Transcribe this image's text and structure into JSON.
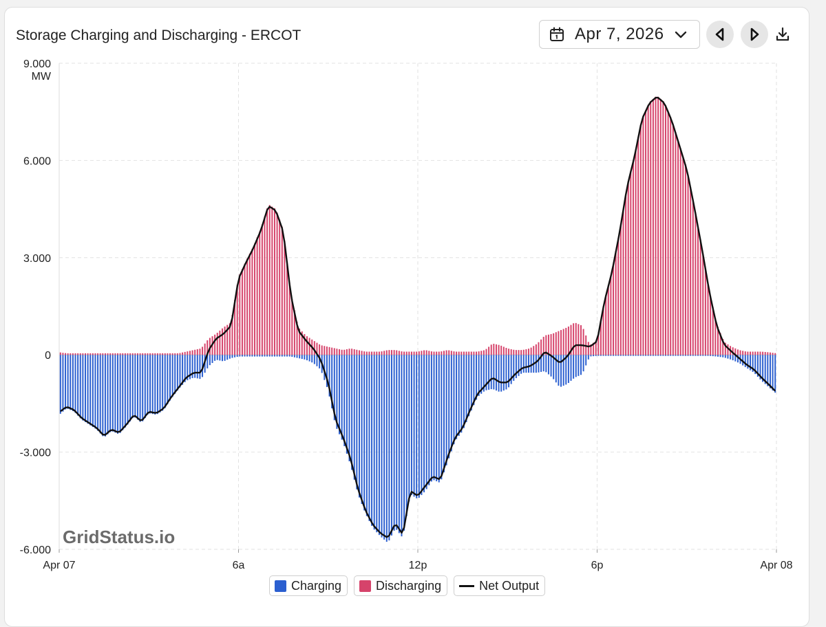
{
  "header": {
    "title": "Storage Charging and Discharging - ERCOT",
    "date": "Apr 7, 2026"
  },
  "watermark": "GridStatus.io",
  "colors": {
    "charging": "#2b5fd0",
    "discharging": "#d6436b",
    "net": "#111111",
    "grid": "#e2e2e2"
  },
  "chart_data": {
    "type": "bar",
    "title": "Storage Charging and Discharging - ERCOT",
    "xlabel": "",
    "ylabel": "MW",
    "unit_label": "MW",
    "ylim": [
      -6000,
      9000
    ],
    "x_range_hours": [
      0,
      24
    ],
    "x_ticks": [
      {
        "hour": 0,
        "label": "Apr 07"
      },
      {
        "hour": 6,
        "label": "6a"
      },
      {
        "hour": 12,
        "label": "12p"
      },
      {
        "hour": 18,
        "label": "6p"
      },
      {
        "hour": 24,
        "label": "Apr 08"
      }
    ],
    "y_ticks": [
      {
        "value": 9000,
        "label": "9.000"
      },
      {
        "value": 6000,
        "label": "6.000"
      },
      {
        "value": 3000,
        "label": "3.000"
      },
      {
        "value": 0,
        "label": "0"
      },
      {
        "value": -3000,
        "label": "-3.000"
      },
      {
        "value": -6000,
        "label": "-6.000"
      }
    ],
    "interval_minutes": 5,
    "series_keypoints": {
      "hours": [
        0,
        0.25,
        0.5,
        0.75,
        1,
        1.25,
        1.5,
        1.75,
        2,
        2.25,
        2.5,
        2.75,
        3,
        3.25,
        3.5,
        3.75,
        4,
        4.25,
        4.5,
        4.75,
        5,
        5.25,
        5.5,
        5.75,
        6,
        6.25,
        6.5,
        6.75,
        7,
        7.25,
        7.5,
        7.75,
        8,
        8.25,
        8.5,
        8.75,
        9,
        9.25,
        9.5,
        9.75,
        10,
        10.25,
        10.5,
        10.75,
        11,
        11.25,
        11.5,
        11.75,
        12,
        12.25,
        12.5,
        12.75,
        13,
        13.25,
        13.5,
        13.75,
        14,
        14.25,
        14.5,
        14.75,
        15,
        15.25,
        15.5,
        15.75,
        16,
        16.25,
        16.5,
        16.75,
        17,
        17.25,
        17.5,
        17.75,
        18,
        18.25,
        18.5,
        18.75,
        19,
        19.25,
        19.5,
        19.75,
        20,
        20.25,
        20.5,
        20.75,
        21,
        21.25,
        21.5,
        21.75,
        22,
        22.25,
        22.5,
        22.75,
        23,
        23.25,
        23.5,
        23.75,
        24
      ],
      "charging": [
        -1850,
        -1650,
        -1750,
        -2000,
        -2150,
        -2300,
        -2550,
        -2350,
        -2450,
        -2200,
        -1900,
        -2100,
        -1800,
        -1850,
        -1700,
        -1350,
        -1050,
        -800,
        -700,
        -750,
        -350,
        -150,
        -200,
        -100,
        -50,
        -50,
        -50,
        -50,
        -50,
        -50,
        -50,
        -50,
        -100,
        -150,
        -250,
        -450,
        -1100,
        -2200,
        -2700,
        -3400,
        -4300,
        -4900,
        -5350,
        -5600,
        -5800,
        -5350,
        -5650,
        -4300,
        -4450,
        -4200,
        -3850,
        -3950,
        -3300,
        -2650,
        -2350,
        -1800,
        -1300,
        -1100,
        -1050,
        -1150,
        -1050,
        -750,
        -550,
        -550,
        -550,
        -500,
        -700,
        -1000,
        -900,
        -700,
        -600,
        -50,
        -30,
        -30,
        -30,
        -30,
        -30,
        -30,
        -30,
        -30,
        -30,
        -30,
        -30,
        -30,
        -30,
        -30,
        -30,
        -30,
        -50,
        -80,
        -150,
        -250,
        -400,
        -550,
        -800,
        -1000,
        -1200
      ],
      "discharging": [
        80,
        50,
        50,
        50,
        50,
        50,
        50,
        50,
        50,
        50,
        50,
        50,
        50,
        50,
        50,
        50,
        50,
        100,
        150,
        200,
        500,
        650,
        850,
        1000,
        2400,
        2900,
        3350,
        3900,
        4650,
        4500,
        3850,
        1900,
        850,
        600,
        450,
        300,
        250,
        200,
        150,
        200,
        150,
        100,
        100,
        100,
        150,
        150,
        100,
        100,
        100,
        150,
        100,
        100,
        150,
        100,
        100,
        100,
        100,
        150,
        350,
        300,
        200,
        150,
        150,
        200,
        350,
        600,
        650,
        750,
        850,
        1000,
        900,
        300,
        450,
        1700,
        2600,
        3800,
        5200,
        6150,
        7300,
        7800,
        8000,
        7800,
        7250,
        6500,
        5750,
        4600,
        3350,
        2000,
        950,
        400,
        250,
        150,
        100,
        100,
        100,
        80,
        50
      ]
    },
    "series": [
      {
        "name": "Charging",
        "color": "#2b5fd0"
      },
      {
        "name": "Discharging",
        "color": "#d6436b"
      },
      {
        "name": "Net Output",
        "color": "#111111"
      }
    ],
    "legend_position": "bottom-center"
  }
}
